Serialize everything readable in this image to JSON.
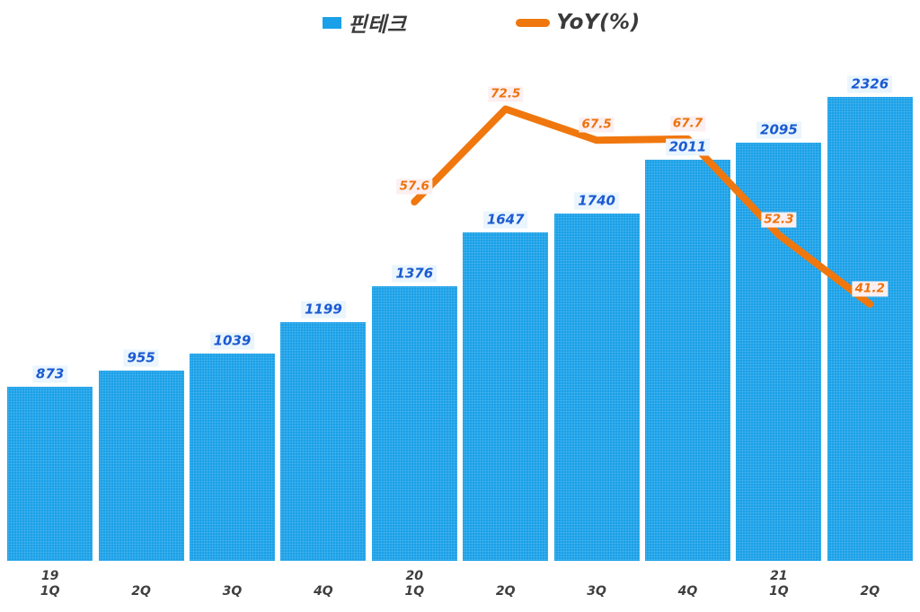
{
  "chart_data": {
    "type": "bar",
    "subtype": "bar-line-combo",
    "title": "",
    "xlabel": "",
    "ylabel": "",
    "grid": false,
    "legend_position": "top-center",
    "categories": [
      "1Q",
      "2Q",
      "3Q",
      "4Q",
      "1Q",
      "2Q",
      "3Q",
      "4Q",
      "1Q",
      "2Q"
    ],
    "year_row": [
      "19",
      "",
      "",
      "",
      "20",
      "",
      "",
      "",
      "21",
      ""
    ],
    "series": [
      {
        "name": "핀테크",
        "type": "bar",
        "axis": "primary",
        "values": [
          873,
          955,
          1039,
          1199,
          1376,
          1647,
          1740,
          2011,
          2095,
          2326
        ]
      },
      {
        "name": "YoY(%)",
        "type": "line",
        "axis": "secondary",
        "values": [
          null,
          null,
          null,
          null,
          57.6,
          72.5,
          67.5,
          67.7,
          52.3,
          41.2
        ]
      }
    ],
    "ylim_primary": [
      0,
      2600
    ],
    "ylim_secondary": [
      0,
      90
    ]
  },
  "colors": {
    "background": "#FFFFFF",
    "bar_fill": "#1AA0E8",
    "line_stroke": "#F0770E",
    "bar_label_text": "#1A5AD2",
    "bar_label_bg": "#EAF5FD",
    "line_label_text": "#EE720B",
    "line_label_bg": "#FCEFF0",
    "axis_label_text": "#3F3F3F",
    "legend_text": "#3A3A3A"
  }
}
